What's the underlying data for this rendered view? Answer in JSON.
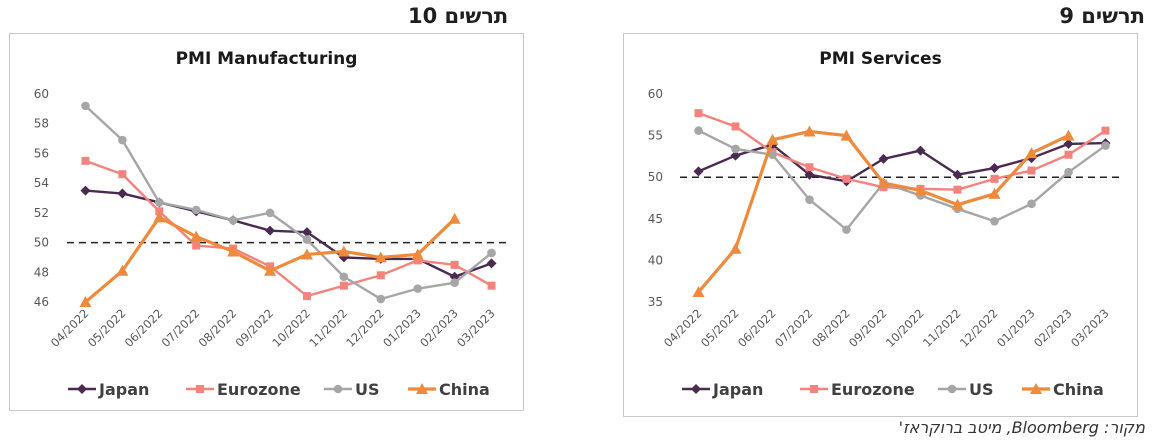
{
  "source_text": "מקור: Bloomberg, מיטב ברוקראז'",
  "colors": {
    "Japan": "#4b2a52",
    "Eurozone": "#f4837d",
    "US": "#a6a6a6",
    "China": "#ee8a3c",
    "reference": "#222222"
  },
  "chart_data": [
    {
      "id": "manufacturing",
      "figure_label": "תרשים 10",
      "type": "line",
      "title": "PMI Manufacturing",
      "categories": [
        "04/2022",
        "05/2022",
        "06/2022",
        "07/2022",
        "08/2022",
        "09/2022",
        "10/2022",
        "11/2022",
        "12/2022",
        "01/2023",
        "02/2023",
        "03/2023"
      ],
      "ylim": [
        46,
        60
      ],
      "yticks": [
        46,
        48,
        50,
        52,
        54,
        56,
        58,
        60
      ],
      "reference_line": 50,
      "grid": false,
      "legend_position": "bottom",
      "series": [
        {
          "name": "Japan",
          "marker": "diamond",
          "values": [
            53.5,
            53.3,
            52.7,
            52.1,
            51.5,
            50.8,
            50.7,
            49.0,
            48.9,
            48.9,
            47.7,
            48.6
          ]
        },
        {
          "name": "Eurozone",
          "marker": "square",
          "values": [
            55.5,
            54.6,
            52.1,
            49.8,
            49.6,
            48.4,
            46.4,
            47.1,
            47.8,
            48.8,
            48.5,
            47.1
          ]
        },
        {
          "name": "US",
          "marker": "circle",
          "values": [
            59.2,
            56.9,
            52.7,
            52.2,
            51.5,
            52.0,
            50.2,
            47.7,
            46.2,
            46.9,
            47.3,
            49.3
          ]
        },
        {
          "name": "China",
          "marker": "triangle",
          "values": [
            46.0,
            48.1,
            51.7,
            50.4,
            49.4,
            48.1,
            49.2,
            49.4,
            49.0,
            49.2,
            51.6,
            null
          ]
        }
      ]
    },
    {
      "id": "services",
      "figure_label": "תרשים 9",
      "type": "line",
      "title": "PMI Services",
      "categories": [
        "04/2022",
        "05/2022",
        "06/2022",
        "07/2022",
        "08/2022",
        "09/2022",
        "10/2022",
        "11/2022",
        "12/2022",
        "01/2023",
        "02/2023",
        "03/2023"
      ],
      "ylim": [
        35,
        60
      ],
      "yticks": [
        35,
        40,
        45,
        50,
        55,
        60
      ],
      "reference_line": 50,
      "grid": false,
      "legend_position": "bottom",
      "series": [
        {
          "name": "Japan",
          "marker": "diamond",
          "values": [
            50.7,
            52.6,
            53.9,
            50.3,
            49.5,
            52.2,
            53.2,
            50.3,
            51.1,
            52.3,
            54.0,
            54.1
          ]
        },
        {
          "name": "Eurozone",
          "marker": "square",
          "values": [
            57.7,
            56.1,
            53.0,
            51.2,
            49.8,
            48.8,
            48.6,
            48.5,
            49.8,
            50.8,
            52.7,
            55.6
          ]
        },
        {
          "name": "US",
          "marker": "circle",
          "values": [
            55.6,
            53.4,
            52.7,
            47.3,
            43.7,
            49.3,
            47.8,
            46.2,
            44.7,
            46.8,
            50.6,
            53.8
          ]
        },
        {
          "name": "China",
          "marker": "triangle",
          "values": [
            36.2,
            41.4,
            54.5,
            55.5,
            55.0,
            49.3,
            48.4,
            46.7,
            48.0,
            52.9,
            55.0,
            null
          ]
        }
      ]
    }
  ]
}
